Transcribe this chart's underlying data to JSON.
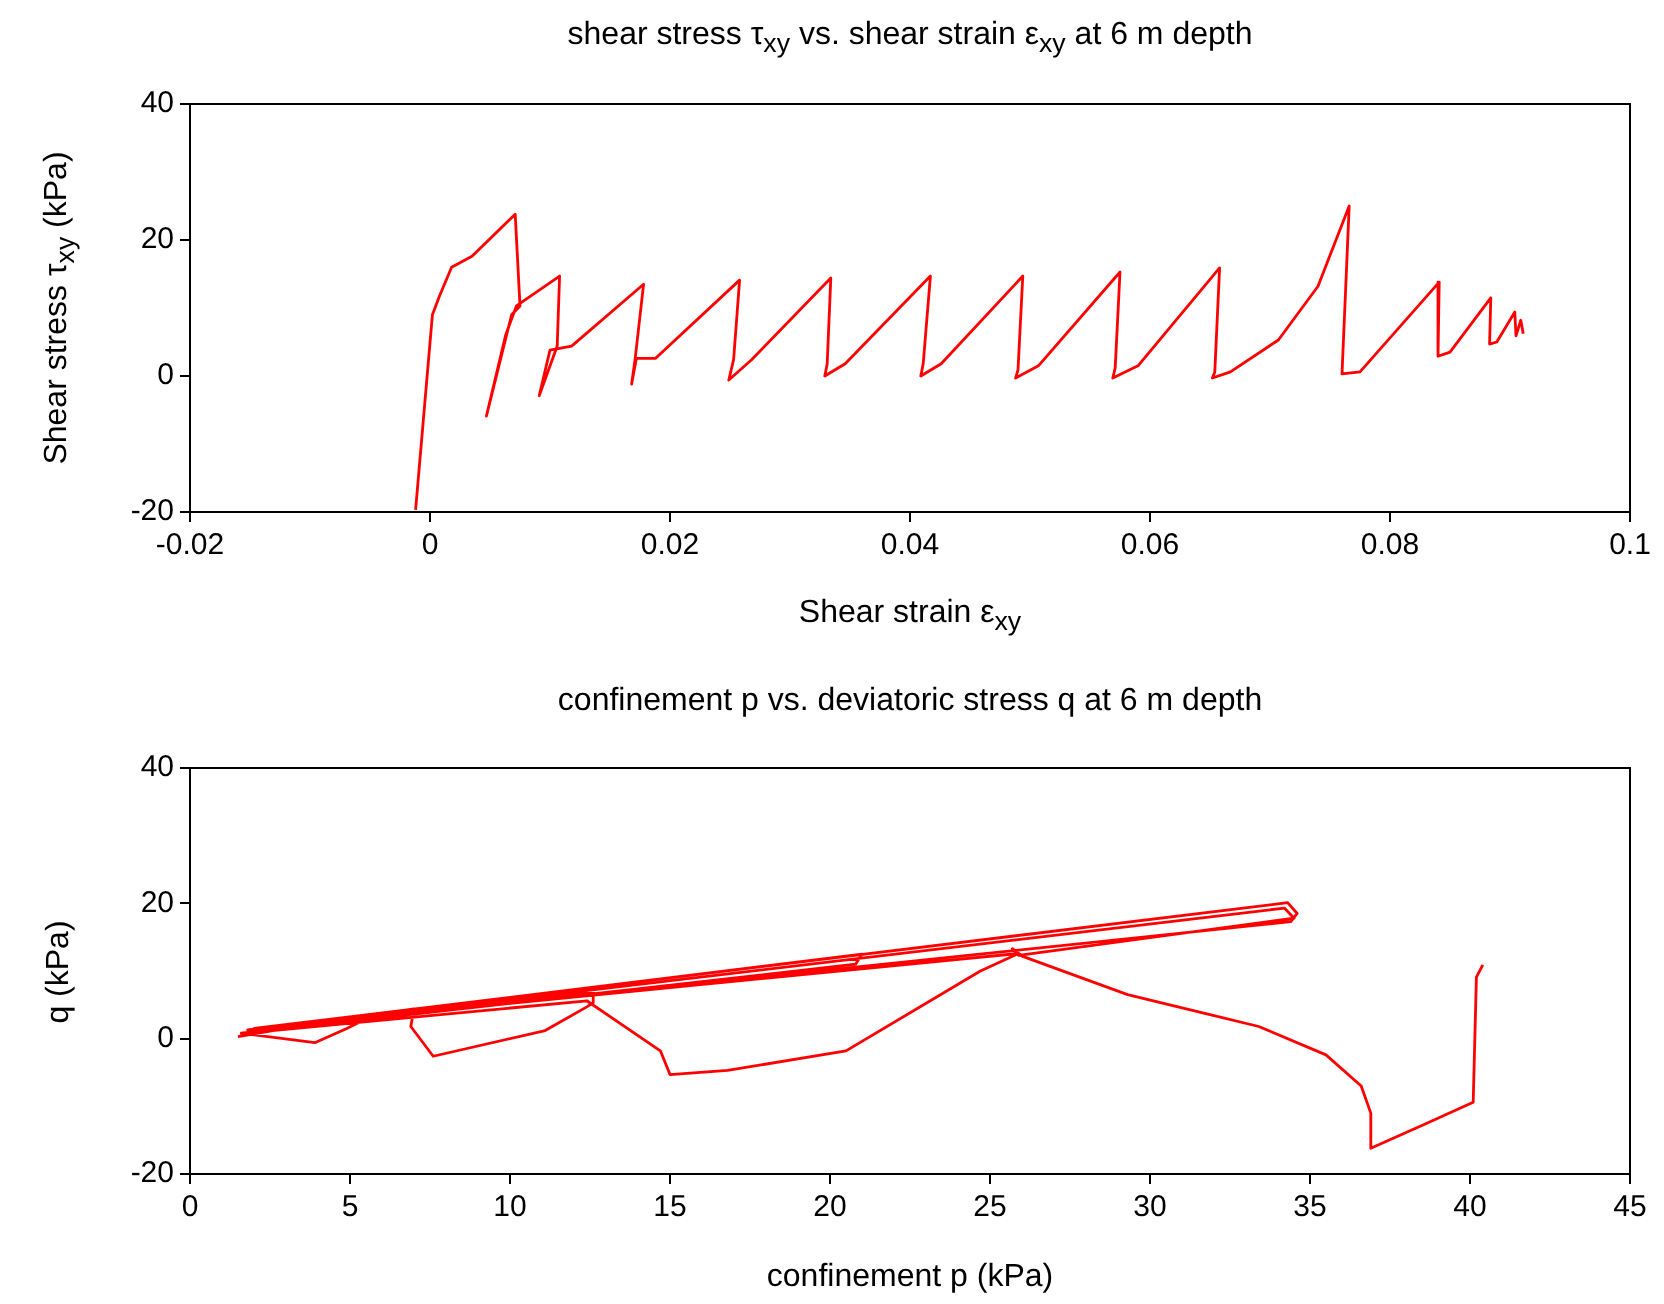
{
  "chart_data": [
    {
      "type": "line",
      "title": "shear stress τ$_{xy}$ vs. shear strain ε$_{xy}$ at 6 m depth",
      "xlabel": "Shear strain ε$_{xy}$",
      "ylabel": "Shear stress τ$_{xy}$ (kPa)",
      "xlim": [
        -0.02,
        0.1
      ],
      "xticks": [
        -0.02,
        0,
        0.02,
        0.04,
        0.06,
        0.08,
        0.1
      ],
      "ylim": [
        -20,
        40
      ],
      "yticks": [
        -20,
        0,
        20,
        40
      ],
      "grid": false,
      "legend": false,
      "series": [
        {
          "color": "#ff0000",
          "x": [
            -0.0012,
            0.0002,
            0.0008,
            0.0018,
            0.0035,
            0.0071,
            0.0075,
            0.0068,
            0.0047,
            0.0063,
            0.0072,
            0.0108,
            0.0106,
            0.0091,
            0.01,
            0.0118,
            0.0178,
            0.0171,
            0.0168,
            0.0172,
            0.0188,
            0.0258,
            0.0253,
            0.0249,
            0.0268,
            0.0334,
            0.0331,
            0.0329,
            0.0346,
            0.0417,
            0.0411,
            0.0409,
            0.0426,
            0.0494,
            0.049,
            0.0488,
            0.0507,
            0.0575,
            0.0571,
            0.0569,
            0.059,
            0.0658,
            0.0654,
            0.0652,
            0.0667,
            0.0707,
            0.074,
            0.0766,
            0.076,
            0.0775,
            0.0841,
            0.084,
            0.085,
            0.0884,
            0.0883,
            0.0889,
            0.0904,
            0.0905,
            0.0909,
            0.0911
          ],
          "values": [
            -19.7,
            9,
            11.8,
            16,
            17.6,
            23.8,
            10.3,
            9,
            -5.9,
            6,
            10.3,
            14.7,
            4.4,
            -2.9,
            3.8,
            4.4,
            13.5,
            2.6,
            -1.2,
            2.6,
            2.6,
            14.1,
            2.4,
            -0.6,
            2.4,
            14.4,
            1.8,
            0,
            1.8,
            14.7,
            1.8,
            0,
            1.8,
            14.7,
            0.9,
            -0.3,
            1.5,
            15.3,
            1.2,
            -0.3,
            1.5,
            15.9,
            0.6,
            -0.3,
            0.6,
            5.3,
            13.2,
            25,
            0.3,
            0.6,
            13.8,
            2.9,
            3.5,
            11.5,
            4.7,
            5,
            9.4,
            5.9,
            8.2,
            6.2
          ]
        }
      ]
    },
    {
      "type": "line",
      "title": "confinement p vs. deviatoric stress q at 6 m depth",
      "xlabel": "confinement p (kPa)",
      "ylabel": "q (kPa)",
      "xlim": [
        0,
        45
      ],
      "xticks": [
        0,
        5,
        10,
        15,
        20,
        25,
        30,
        35,
        40,
        45
      ],
      "ylim": [
        -20,
        40
      ],
      "yticks": [
        -20,
        0,
        20,
        40
      ],
      "grid": false,
      "legend": false,
      "series": [
        {
          "color": "#ff0000",
          "x": [
            1.5,
            5.2,
            5.4,
            4.9,
            3.9,
            1.6,
            7,
            6.9,
            7.6,
            11.1,
            12.4,
            12.6,
            12.6,
            1.8,
            21,
            20.8,
            1.9,
            12.4,
            14.7,
            15,
            16.8,
            20.5,
            24.7,
            25.9,
            2,
            34.3,
            34.6,
            34.4,
            2.2,
            34.2,
            34.5,
            25.9,
            25.7,
            26,
            29.3,
            33.4,
            35.5,
            36.6,
            36.9,
            36.9,
            38.6,
            40.1,
            40.2,
            40.4
          ],
          "values": [
            0.3,
            3.3,
            2.7,
            1.5,
            -0.6,
            0.8,
            4.4,
            1.8,
            -2.6,
            1.2,
            4.7,
            5.3,
            6.9,
            1.3,
            12.5,
            11,
            0.9,
            5.6,
            -1.8,
            -5.3,
            -4.7,
            -1.8,
            10,
            12.6,
            1.5,
            20.1,
            18.5,
            17.3,
            1.4,
            19.3,
            17.8,
            12.3,
            13.3,
            12.2,
            6.5,
            1.8,
            -2.4,
            -7,
            -11,
            -16.2,
            -12.6,
            -9.4,
            9.1,
            10.9
          ]
        }
      ]
    }
  ]
}
